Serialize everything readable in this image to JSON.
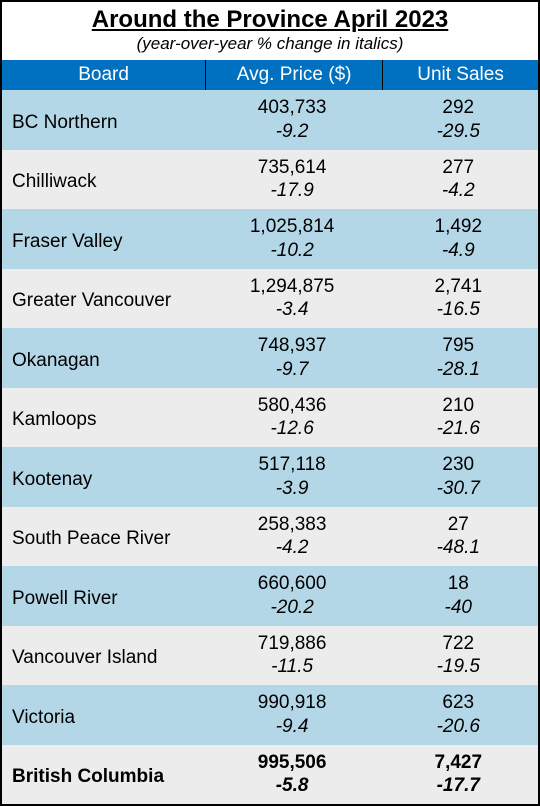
{
  "title": "Around the Province April 2023",
  "subtitle": "(year-over-year % change in italics)",
  "columns": {
    "board": "Board",
    "price": "Avg. Price ($)",
    "sales": "Unit Sales"
  },
  "colors": {
    "header_bg": "#0070c0",
    "header_fg": "#ffffff",
    "band_blue": "#b4d7e8",
    "band_grey": "#ececec",
    "border": "#000000"
  },
  "fonts": {
    "title_pt": 24,
    "subtitle_pt": 17,
    "body_pt": 19
  },
  "rows": [
    {
      "board": "BC Northern",
      "price": "403,733",
      "price_pct": "-9.2",
      "sales": "292",
      "sales_pct": "-29.5"
    },
    {
      "board": "Chilliwack",
      "price": "735,614",
      "price_pct": "-17.9",
      "sales": "277",
      "sales_pct": "-4.2"
    },
    {
      "board": "Fraser Valley",
      "price": "1,025,814",
      "price_pct": "-10.2",
      "sales": "1,492",
      "sales_pct": "-4.9"
    },
    {
      "board": "Greater Vancouver",
      "price": "1,294,875",
      "price_pct": "-3.4",
      "sales": "2,741",
      "sales_pct": "-16.5"
    },
    {
      "board": "Okanagan",
      "price": "748,937",
      "price_pct": "-9.7",
      "sales": "795",
      "sales_pct": "-28.1"
    },
    {
      "board": "Kamloops",
      "price": "580,436",
      "price_pct": "-12.6",
      "sales": "210",
      "sales_pct": "-21.6"
    },
    {
      "board": "Kootenay",
      "price": "517,118",
      "price_pct": "-3.9",
      "sales": "230",
      "sales_pct": "-30.7"
    },
    {
      "board": "South Peace River",
      "price": "258,383",
      "price_pct": "-4.2",
      "sales": "27",
      "sales_pct": "-48.1"
    },
    {
      "board": "Powell River",
      "price": "660,600",
      "price_pct": "-20.2",
      "sales": "18",
      "sales_pct": "-40"
    },
    {
      "board": "Vancouver Island",
      "price": "719,886",
      "price_pct": "-11.5",
      "sales": "722",
      "sales_pct": "-19.5"
    },
    {
      "board": "Victoria",
      "price": "990,918",
      "price_pct": "-9.4",
      "sales": "623",
      "sales_pct": "-20.6"
    }
  ],
  "total": {
    "board": "British Columbia",
    "price": "995,506",
    "price_pct": "-5.8",
    "sales": "7,427",
    "sales_pct": "-17.7"
  }
}
